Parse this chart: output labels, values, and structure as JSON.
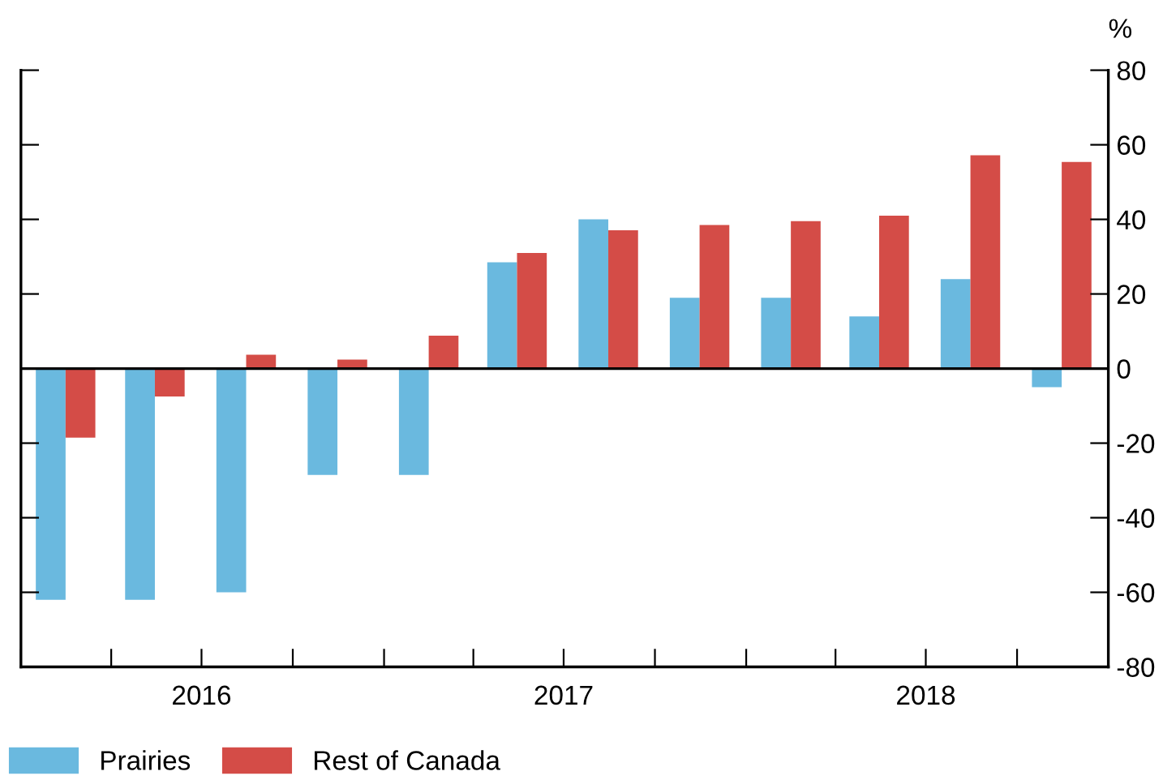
{
  "chart_data": {
    "type": "bar",
    "ylabel": "%",
    "x": [
      "2016-02-15",
      "2016-05-15",
      "2016-08-15",
      "2016-11-15",
      "2017-02-15",
      "2017-05-15",
      "2017-08-15",
      "2017-11-15",
      "2018-02-15",
      "2018-05-15",
      "2018-08-15",
      "2018-11-15"
    ],
    "series": [
      {
        "name": "Prairies",
        "color": "#6ab9df",
        "values": [
          -62,
          -62,
          -60,
          -28.5,
          -28.5,
          28.5,
          40,
          19,
          19,
          14,
          24,
          -5
        ]
      },
      {
        "name": "Rest of Canada",
        "color": "#d44c47",
        "values": [
          -18.5,
          -7.5,
          3.7,
          2.4,
          8.8,
          31,
          37.1,
          38.5,
          39.5,
          41,
          57.2,
          55.4
        ]
      }
    ],
    "xlim": [
      "2016-01-01",
      "2019-01-01"
    ],
    "xticks": [
      {
        "value": "2016-01-01",
        "label": null
      },
      {
        "value": "2016-04-01",
        "label": null
      },
      {
        "value": "2016-07-01",
        "label": "2016"
      },
      {
        "value": "2016-10-01",
        "label": null
      },
      {
        "value": "2017-01-01",
        "label": null
      },
      {
        "value": "2017-04-01",
        "label": null
      },
      {
        "value": "2017-07-01",
        "label": "2017"
      },
      {
        "value": "2017-10-01",
        "label": null
      },
      {
        "value": "2018-01-01",
        "label": null
      },
      {
        "value": "2018-04-01",
        "label": null
      },
      {
        "value": "2018-07-01",
        "label": "2018"
      },
      {
        "value": "2018-10-01",
        "label": null
      },
      {
        "value": "2019-01-01",
        "label": null
      }
    ],
    "ylim": [
      -80,
      80
    ],
    "yticks": [
      -80,
      -60,
      -40,
      -20,
      0,
      20,
      40,
      60,
      80
    ],
    "legend": "bottom left"
  }
}
